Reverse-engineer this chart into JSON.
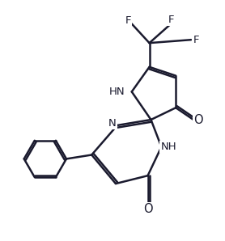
{
  "background_color": "#ffffff",
  "line_color": "#1a1a2e",
  "line_width": 1.8,
  "font_size": 9.5,
  "figsize": [
    2.78,
    2.98
  ],
  "dpi": 100,
  "xlim": [
    0,
    10
  ],
  "ylim": [
    0,
    10.7
  ]
}
